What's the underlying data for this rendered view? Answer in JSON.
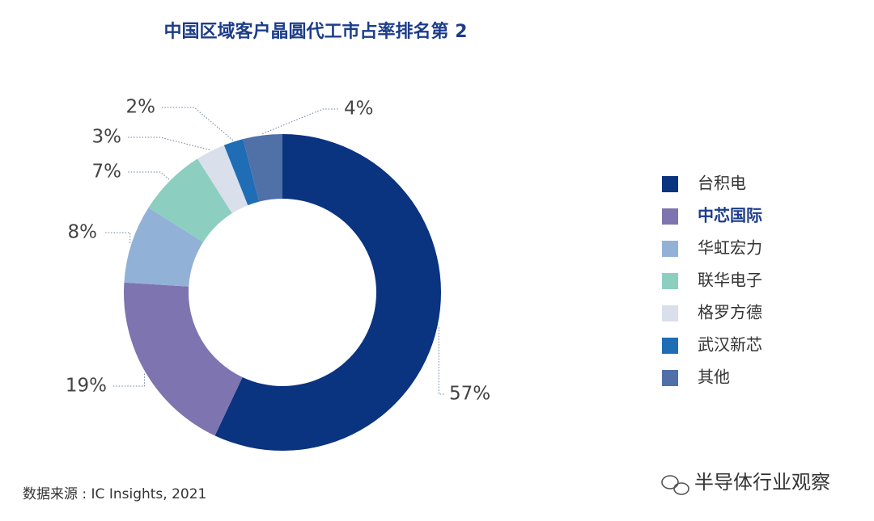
{
  "chart_data": {
    "type": "donut",
    "title": "中国区域客户晶圆代工市占率排名第 2",
    "categories": [
      "台积电",
      "中芯国际",
      "华虹宏力",
      "联华电子",
      "格罗方德",
      "武汉新芯",
      "其他"
    ],
    "values": [
      57,
      19,
      8,
      7,
      3,
      2,
      4
    ],
    "value_labels": [
      "57%",
      "19%",
      "8%",
      "7%",
      "3%",
      "2%",
      "4%"
    ],
    "colors": [
      "#0a3380",
      "#7d74b0",
      "#92b1d6",
      "#8ccfc0",
      "#d9dfeb",
      "#1f6db5",
      "#5070a8"
    ],
    "legend": "right",
    "source": "数据来源 : IC Insights, 2021",
    "watermark": "半导体行业观察"
  }
}
